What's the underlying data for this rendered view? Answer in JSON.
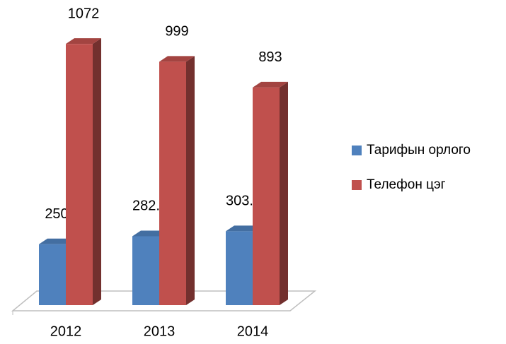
{
  "chart_data": {
    "type": "bar3d",
    "categories": [
      "2012",
      "2013",
      "2014"
    ],
    "series": [
      {
        "name": "Тарифын орлого",
        "color": "#4f81bd",
        "values": [
          250,
          282.7,
          303.2
        ]
      },
      {
        "name": "Телефон цэг",
        "color": "#c0504d",
        "values": [
          1072,
          999,
          893
        ]
      }
    ]
  }
}
